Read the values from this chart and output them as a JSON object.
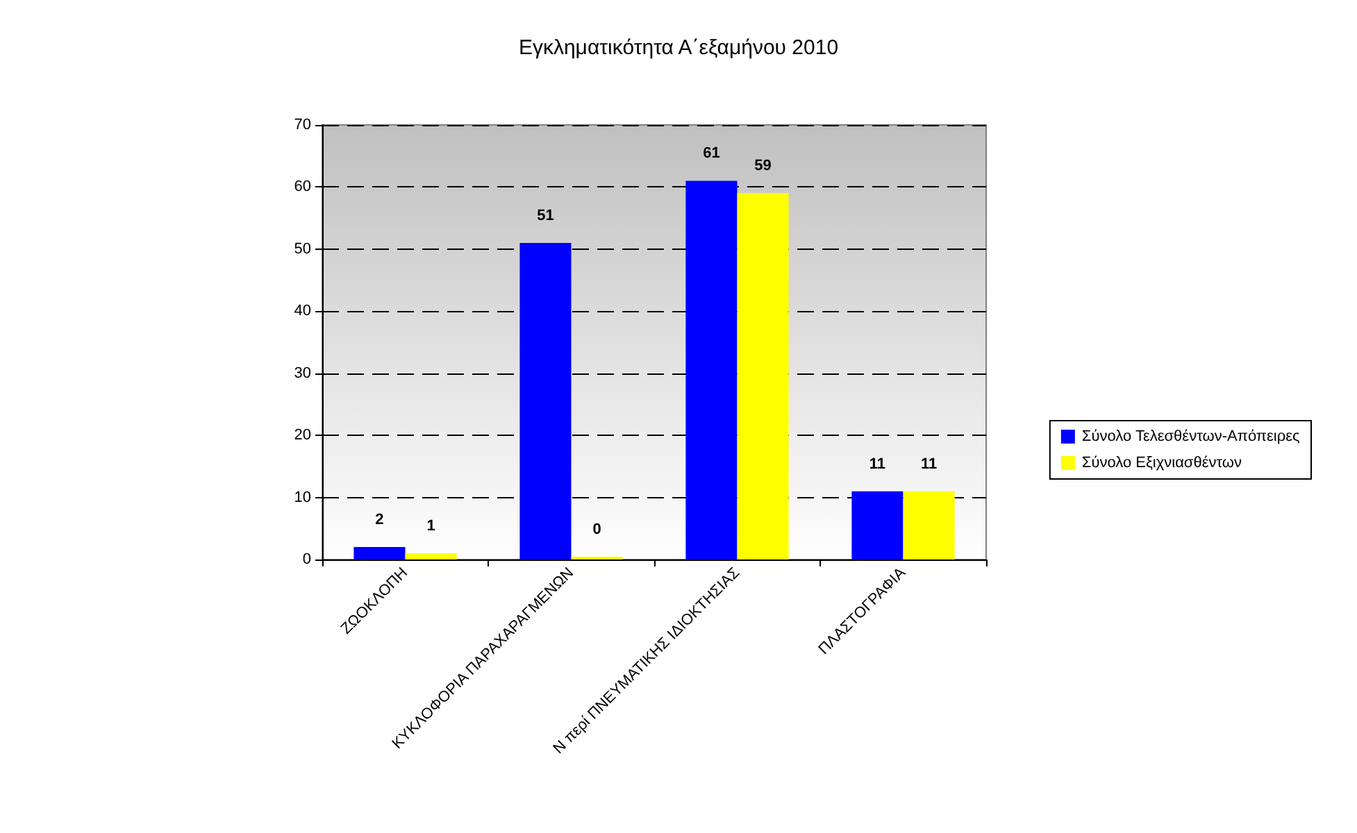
{
  "chart_data": {
    "type": "bar",
    "title": "Εγκληματικότητα Α΄εξαμήνου 2010",
    "categories": [
      "ΖΩΟΚΛΟΠΗ",
      "ΚΥΚΛΟΦΟΡΙΑ ΠΑΡΑΧΑΡΑΓΜΕΝΩΝ",
      "Ν περί ΠΝΕΥΜΑΤΙΚΗΣ ΙΔΙΟΚΤΗΣΙΑΣ",
      "ΠΛΑΣΤΟΓΡΑΦΙΑ"
    ],
    "series": [
      {
        "name": "Σύνολο Τελεσθέντων-Απόπειρες",
        "color": "#0000ff",
        "values": [
          2,
          51,
          61,
          11
        ]
      },
      {
        "name": "Σύνολο Εξιχνιασθέντων",
        "color": "#ffff00",
        "values": [
          1,
          0,
          59,
          11
        ]
      }
    ],
    "ylim": [
      0,
      70
    ],
    "yticks": [
      0,
      10,
      20,
      30,
      40,
      50,
      60,
      70
    ],
    "grid": "y",
    "legend": "right",
    "data_labels": true
  }
}
